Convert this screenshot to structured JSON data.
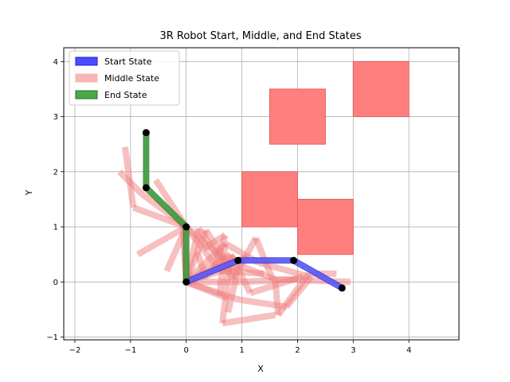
{
  "chart_data": {
    "type": "line",
    "title": "3R Robot Start, Middle, and End States",
    "xlabel": "X",
    "ylabel": "Y",
    "xlim": [
      -2.2,
      4.9
    ],
    "ylim": [
      -1.05,
      4.25
    ],
    "xticks": [
      -2,
      -1,
      0,
      1,
      2,
      3,
      4
    ],
    "yticks": [
      -1,
      0,
      1,
      2,
      3,
      4
    ],
    "grid": true,
    "legend": {
      "placement": "top-left",
      "entries": [
        {
          "label": "Start State",
          "color": "#4a4aff"
        },
        {
          "label": "Middle State",
          "color": "#f7b6b6"
        },
        {
          "label": "End State",
          "color": "#4aa84a"
        }
      ]
    },
    "obstacles": [
      {
        "x": 1.0,
        "y": 1.0,
        "width": 1.0,
        "height": 1.0
      },
      {
        "x": 1.5,
        "y": 2.5,
        "width": 1.0,
        "height": 1.0
      },
      {
        "x": 2.0,
        "y": 0.5,
        "width": 1.0,
        "height": 1.0
      },
      {
        "x": 3.0,
        "y": 3.0,
        "width": 1.0,
        "height": 1.0
      }
    ],
    "start_state": [
      [
        0,
        0
      ],
      [
        0.93,
        0.39
      ],
      [
        1.93,
        0.39
      ],
      [
        2.8,
        -0.11
      ]
    ],
    "end_state": [
      [
        0,
        0
      ],
      [
        0,
        1.0
      ],
      [
        -0.72,
        1.71
      ],
      [
        -0.72,
        2.71
      ]
    ],
    "middle_segments": [
      [
        [
          0.0,
          0.0
        ],
        [
          0.35,
          0.94
        ]
      ],
      [
        [
          0.0,
          0.0
        ],
        [
          0.7,
          0.7
        ]
      ],
      [
        [
          0.0,
          0.0
        ],
        [
          0.8,
          0.5
        ]
      ],
      [
        [
          0.0,
          0.0
        ],
        [
          0.95,
          0.3
        ]
      ],
      [
        [
          0.0,
          0.0
        ],
        [
          1.0,
          0.0
        ]
      ],
      [
        [
          0.0,
          0.0
        ],
        [
          0.94,
          -0.32
        ]
      ],
      [
        [
          0.0,
          0.0
        ],
        [
          0.22,
          0.97
        ]
      ],
      [
        [
          0.0,
          0.0
        ],
        [
          -0.05,
          1.0
        ]
      ],
      [
        [
          0.0,
          0.0
        ],
        [
          0.9,
          0.44
        ]
      ],
      [
        [
          0.0,
          1.0
        ],
        [
          -0.8,
          1.6
        ]
      ],
      [
        [
          0.0,
          1.0
        ],
        [
          -0.95,
          1.35
        ]
      ],
      [
        [
          0.0,
          1.0
        ],
        [
          -0.87,
          0.5
        ]
      ],
      [
        [
          0.0,
          1.0
        ],
        [
          -0.35,
          0.2
        ]
      ],
      [
        [
          0.0,
          1.0
        ],
        [
          0.6,
          0.2
        ]
      ],
      [
        [
          0.0,
          1.0
        ],
        [
          0.75,
          0.35
        ]
      ],
      [
        [
          0.0,
          1.0
        ],
        [
          -0.55,
          1.85
        ]
      ],
      [
        [
          -0.8,
          1.6
        ],
        [
          -1.2,
          2.0
        ]
      ],
      [
        [
          -0.95,
          1.35
        ],
        [
          -1.1,
          2.45
        ]
      ],
      [
        [
          0.35,
          0.94
        ],
        [
          0.9,
          0.1
        ]
      ],
      [
        [
          0.7,
          0.7
        ],
        [
          1.3,
          0.35
        ]
      ],
      [
        [
          0.8,
          0.5
        ],
        [
          1.15,
          -0.2
        ]
      ],
      [
        [
          0.95,
          0.3
        ],
        [
          1.6,
          0.05
        ]
      ],
      [
        [
          0.94,
          -0.32
        ],
        [
          1.8,
          -0.45
        ]
      ],
      [
        [
          1.0,
          0.0
        ],
        [
          2.0,
          0.05
        ]
      ],
      [
        [
          0.22,
          0.97
        ],
        [
          0.85,
          0.05
        ]
      ],
      [
        [
          0.0,
          0.0
        ],
        [
          0.75,
          -0.3
        ]
      ],
      [
        [
          0.7,
          0.7
        ],
        [
          0.6,
          -0.25
        ]
      ],
      [
        [
          0.8,
          0.5
        ],
        [
          0.65,
          -0.75
        ]
      ],
      [
        [
          0.65,
          -0.75
        ],
        [
          1.6,
          -0.6
        ]
      ],
      [
        [
          0.9,
          0.1
        ],
        [
          0.75,
          -0.55
        ]
      ],
      [
        [
          1.3,
          0.35
        ],
        [
          2.2,
          0.1
        ]
      ],
      [
        [
          1.6,
          0.05
        ],
        [
          2.95,
          0.0
        ]
      ],
      [
        [
          1.15,
          -0.2
        ],
        [
          2.1,
          0.1
        ]
      ],
      [
        [
          0.85,
          0.05
        ],
        [
          1.25,
          0.8
        ]
      ],
      [
        [
          1.25,
          0.8
        ],
        [
          1.55,
          0.05
        ]
      ],
      [
        [
          1.6,
          0.05
        ],
        [
          1.65,
          -0.6
        ]
      ],
      [
        [
          1.65,
          -0.6
        ],
        [
          2.2,
          0.15
        ]
      ],
      [
        [
          2.2,
          0.15
        ],
        [
          2.7,
          0.15
        ]
      ],
      [
        [
          1.8,
          -0.45
        ],
        [
          2.25,
          0.1
        ]
      ],
      [
        [
          0.0,
          0.0
        ],
        [
          -0.05,
          0.9
        ]
      ],
      [
        [
          0.3,
          0.6
        ],
        [
          0.7,
          0.85
        ]
      ],
      [
        [
          0.7,
          0.85
        ],
        [
          0.5,
          0.25
        ]
      ],
      [
        [
          0.5,
          0.25
        ],
        [
          1.1,
          0.45
        ]
      ],
      [
        [
          0.6,
          0.2
        ],
        [
          1.4,
          0.15
        ]
      ],
      [
        [
          0.2,
          0.55
        ],
        [
          0.35,
          0.05
        ]
      ]
    ],
    "joint_points": [
      [
        0,
        0
      ],
      [
        0.93,
        0.39
      ],
      [
        1.93,
        0.39
      ],
      [
        2.8,
        -0.11
      ],
      [
        0,
        1.0
      ],
      [
        -0.72,
        1.71
      ],
      [
        -0.72,
        2.71
      ]
    ]
  }
}
